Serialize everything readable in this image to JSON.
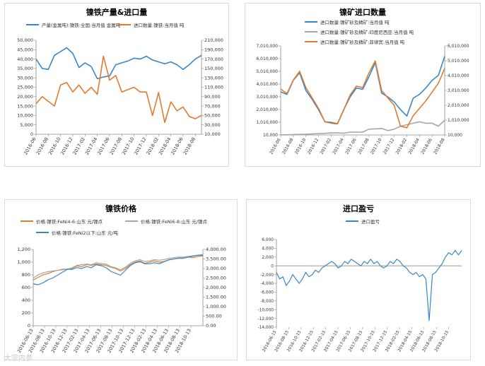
{
  "colors": {
    "blue": "#3a87c8",
    "orange": "#e07b30",
    "gray": "#a6a6a6",
    "axis": "#8c8c8c",
    "text": "#333333"
  },
  "watermark": "大宗内参",
  "chart_data": [
    {
      "id": "production-import",
      "type": "line",
      "title": "镍铁产量&进口量",
      "x": [
        "2016-06",
        "2016-07",
        "2016-08",
        "2016-09",
        "2016-10",
        "2016-11",
        "2016-12",
        "2017-01",
        "2017-02",
        "2017-03",
        "2017-04",
        "2017-05",
        "2017-06",
        "2017-07",
        "2017-08",
        "2017-09",
        "2017-10",
        "2017-11",
        "2017-12",
        "2018-01",
        "2018-02",
        "2018-03",
        "2018-04",
        "2018-05",
        "2018-06",
        "2018-07",
        "2018-08",
        "2018-09"
      ],
      "xticks": [
        "2016-06",
        "2016-08",
        "2016-10",
        "2016-12",
        "2017-02",
        "2017-04",
        "2017-06",
        "2017-08",
        "2017-10",
        "2017-12",
        "2018-02",
        "2018-04",
        "2018-06",
        "2018-08"
      ],
      "ylim_left": [
        0,
        50000
      ],
      "yticks_left": [
        "0",
        "5,000",
        "10,000",
        "15,000",
        "20,000",
        "25,000",
        "30,000",
        "35,000",
        "40,000",
        "45,000",
        "50,000"
      ],
      "ylim_right": [
        10000,
        210000
      ],
      "yticks_right": [
        "10,000",
        "30,000",
        "50,000",
        "70,000",
        "90,000",
        "110,000",
        "130,000",
        "150,000",
        "170,000",
        "190,000",
        "210,000"
      ],
      "series": [
        {
          "name": "产量(金属吨):镍铁:全国:当月值 金属吨",
          "axis": "left",
          "color": "blue",
          "values": [
            40000,
            35000,
            34500,
            42000,
            44000,
            46000,
            43000,
            35500,
            38000,
            36000,
            29500,
            30500,
            31000,
            37000,
            38000,
            39000,
            40500,
            40000,
            41500,
            39500,
            38500,
            37500,
            38500,
            37000,
            34500,
            37000,
            40000,
            42000
          ]
        },
        {
          "name": "进口数量:镍铁:当月值 吨",
          "axis": "right",
          "color": "orange",
          "values": [
            75000,
            90000,
            80000,
            70000,
            115000,
            120000,
            100000,
            115000,
            97000,
            110000,
            95000,
            176000,
            125000,
            135000,
            100000,
            105000,
            110000,
            100000,
            100000,
            50000,
            99000,
            35000,
            79000,
            60000,
            68000,
            48000,
            43000,
            50000
          ]
        }
      ],
      "legend_position": "top"
    },
    {
      "id": "ore-import",
      "type": "line",
      "title": "镍矿进口数量",
      "x": [
        "2016-06",
        "2016-07",
        "2016-08",
        "2016-09",
        "2016-10",
        "2016-11",
        "2016-12",
        "2017-01",
        "2017-02",
        "2017-03",
        "2017-04",
        "2017-05",
        "2017-06",
        "2017-07",
        "2017-08",
        "2017-09",
        "2017-10",
        "2017-11",
        "2017-12",
        "2018-01",
        "2018-02",
        "2018-03",
        "2018-04",
        "2018-05",
        "2018-06",
        "2018-07",
        "2018-08"
      ],
      "xticks": [
        "2016-06",
        "2016-08",
        "2016-10",
        "2016-12",
        "2017-02",
        "2017-04",
        "2017-06",
        "2017-08",
        "2017-10",
        "2017-12",
        "2018-02",
        "2018-04",
        "2018-06",
        "2018-08"
      ],
      "ylim_left": [
        10000,
        7010000
      ],
      "yticks_left": [
        "10,000",
        "1,010,000",
        "2,010,000",
        "3,010,000",
        "4,010,000",
        "5,010,000",
        "6,010,000",
        "7,010,000"
      ],
      "ylim_right": [
        10000,
        6010000
      ],
      "yticks_right": [
        "10,000",
        "1,010,000",
        "2,010,000",
        "3,010,000",
        "4,010,000",
        "5,010,000",
        "6,010,000"
      ],
      "series": [
        {
          "name": "进口数量:镍矿砂及精矿:当月值 吨",
          "axis": "left",
          "color": "blue",
          "values": [
            3400000,
            3200000,
            4300000,
            4900000,
            3500000,
            2800000,
            2000000,
            1050000,
            1000000,
            900000,
            2000000,
            3000000,
            3700000,
            3600000,
            4600000,
            5700000,
            3300000,
            3000000,
            2600000,
            2000000,
            1500000,
            2900000,
            3200000,
            3700000,
            4300000,
            4700000,
            6200000
          ]
        },
        {
          "name": "进口数量:镍矿砂及精矿:印度尼西亚:当月值 吨",
          "axis": "right",
          "color": "gray",
          "values": [
            20000,
            20000,
            40000,
            50000,
            60000,
            80000,
            100000,
            120000,
            150000,
            150000,
            130000,
            200000,
            200000,
            200000,
            400000,
            420000,
            450000,
            300000,
            400000,
            600000,
            700000,
            800000,
            900000,
            800000,
            800000,
            600000,
            1000000
          ]
        },
        {
          "name": "进口数量:镍矿砂及精矿:菲律宾:当月值 吨",
          "axis": "right",
          "color": "orange",
          "values": [
            3100000,
            2800000,
            3700000,
            4300000,
            3200000,
            2500000,
            1800000,
            900000,
            800000,
            750000,
            1700000,
            2700000,
            3300000,
            3200000,
            4200000,
            5000000,
            3000000,
            2500000,
            2000000,
            600000,
            500000,
            1300000,
            1800000,
            2300000,
            2900000,
            3500000,
            4500000
          ]
        }
      ],
      "legend_position": "top"
    },
    {
      "id": "nickel-pig-iron-price",
      "type": "line",
      "title": "镍铁价格",
      "x_start": "2016-06-13",
      "x_end": "2018-11-13",
      "xticks": [
        "2016-06-13",
        "2016-08-13",
        "2016-10-13",
        "2016-12-13",
        "2017-02-13",
        "2017-04-13",
        "2017-06-13",
        "2017-08-13",
        "2017-10-13",
        "2017-12-13",
        "2018-02-13",
        "2018-04-13",
        "2018-06-13",
        "2018-08-13",
        "2018-10-13"
      ],
      "ylim_left": [
        0,
        1200
      ],
      "yticks_left": [
        "0",
        "200",
        "400",
        "600",
        "800",
        "1,000",
        "1,200"
      ],
      "ylim_right": [
        0,
        4000
      ],
      "yticks_right": [
        "0.00",
        "500.00",
        "1,000.00",
        "1,500.00",
        "2,000.00",
        "2,500.00",
        "3,000.00",
        "3,500.00",
        "4,000.00"
      ],
      "series": [
        {
          "name": "价格:镍铁:FeNi4-6:山东 元/镍点",
          "axis": "left",
          "color": "orange",
          "values": [
            720,
            760,
            800,
            820,
            850,
            870,
            880,
            890,
            900,
            940,
            930,
            960,
            950,
            970,
            960,
            950,
            920,
            900,
            860,
            900,
            960,
            1000,
            1020,
            980,
            1000,
            1020,
            1000,
            1010,
            1040,
            1050,
            1060,
            1060,
            1080,
            1070,
            1090,
            1100
          ]
        },
        {
          "name": "价格:镍铁:FeNi6-8:山东 元/镍点",
          "axis": "left",
          "color": "gray",
          "values": [
            750,
            800,
            830,
            850,
            860,
            870,
            890,
            890,
            910,
            950,
            960,
            970,
            960,
            990,
            980,
            970,
            930,
            910,
            880,
            920,
            980,
            1020,
            1040,
            1010,
            1020,
            1040,
            1030,
            1040,
            1060,
            1070,
            1080,
            1080,
            1090,
            1100,
            1110,
            1120
          ]
        },
        {
          "name": "价格:镍铁:FeNi2以下:山东 元/吨",
          "axis": "right",
          "color": "blue",
          "values": [
            2200,
            2150,
            2250,
            2400,
            2500,
            2650,
            2800,
            2950,
            2950,
            3050,
            3000,
            3100,
            3050,
            3200,
            3150,
            3050,
            2850,
            2750,
            2650,
            2900,
            3150,
            3300,
            3350,
            3250,
            3250,
            3300,
            3250,
            3350,
            3450,
            3500,
            3550,
            3550,
            3600,
            3650,
            3700,
            3700
          ]
        }
      ],
      "legend_position": "top"
    },
    {
      "id": "import-margin",
      "type": "line",
      "title": "进口盈亏",
      "x_start": "2016-06-15",
      "x_end": "2018-11-15",
      "xticks": [
        "2016-06-15",
        "2016-08-15",
        "2016-10-15",
        "2016-12-15",
        "2017-02-15",
        "2017-04-15",
        "2017-06-15",
        "2017-08-15",
        "2017-10-15",
        "2017-12-15",
        "2018-02-15",
        "2018-04-15",
        "2018-06-15",
        "2018-08-15",
        "2018-10-15"
      ],
      "ylim": [
        -14000,
        6000
      ],
      "yticks": [
        "-14,000",
        "-12,000",
        "-10,000",
        "-8,000",
        "-6,000",
        "-4,000",
        "-2,000",
        "0",
        "2,000",
        "4,000",
        "6,000"
      ],
      "series": [
        {
          "name": "进口盈亏",
          "color": "blue",
          "values": [
            -1500,
            -3000,
            -2500,
            -4500,
            -3500,
            -2000,
            -3000,
            -4000,
            -3000,
            -1500,
            -2500,
            -2000,
            -1000,
            -1500,
            -500,
            0,
            500,
            1000,
            500,
            -500,
            0,
            1000,
            500,
            1500,
            1000,
            500,
            0,
            1000,
            500,
            1500,
            500,
            1000,
            0,
            -500,
            0,
            1000,
            500,
            1500,
            1000,
            0,
            -500,
            -1500,
            -2000,
            -1500,
            -2500,
            -2000,
            -3000,
            -12500,
            -2000,
            -1500,
            -500,
            500,
            2000,
            3000,
            2500,
            3500,
            2500,
            3500
          ]
        }
      ],
      "legend_position": "top"
    }
  ]
}
